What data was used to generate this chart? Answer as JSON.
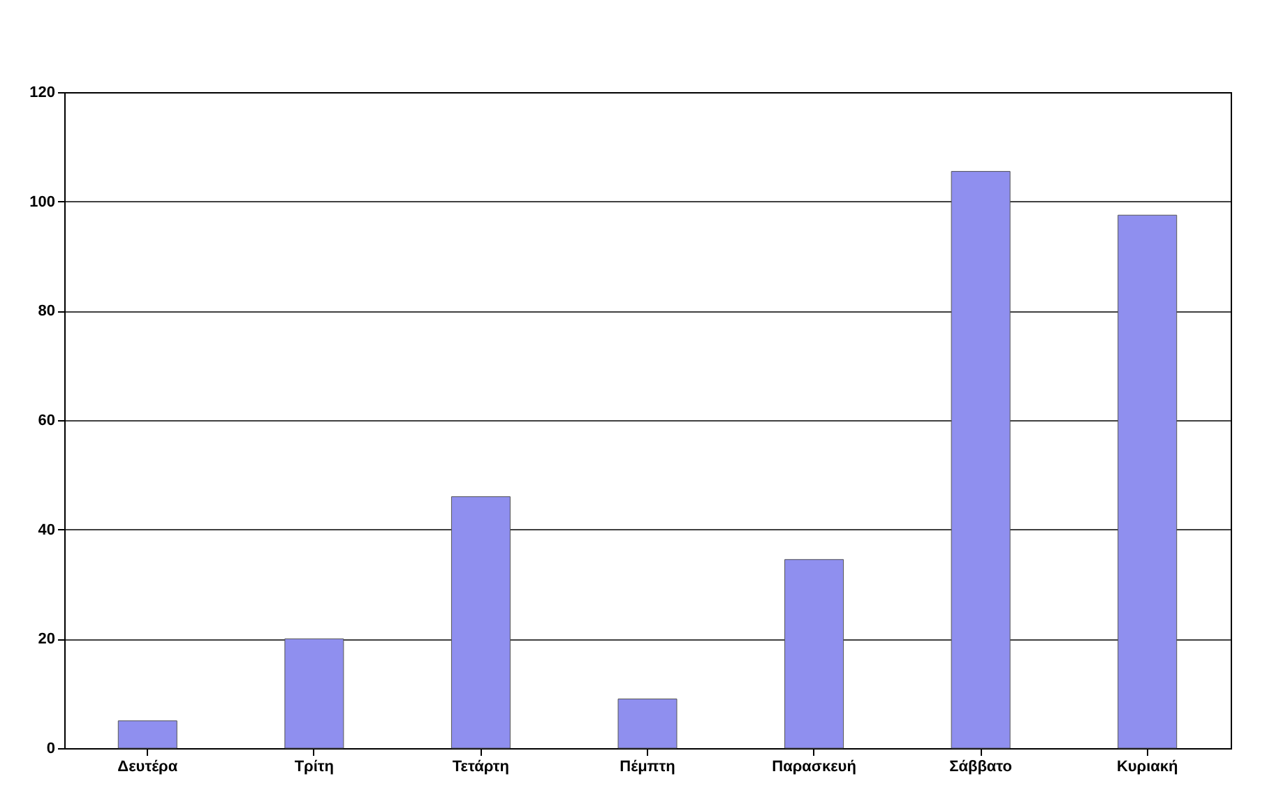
{
  "chart_data": {
    "type": "bar",
    "categories": [
      "Δευτέρα",
      "Τρίτη",
      "Τετάρτη",
      "Πέμπτη",
      "Παρασκευή",
      "Σάββατο",
      "Κυριακή"
    ],
    "values": [
      5,
      20,
      46,
      9,
      34.5,
      105.5,
      97.5
    ],
    "color": "#8f8fef",
    "ylim": [
      0,
      120
    ],
    "yticks": [
      0,
      20,
      40,
      60,
      80,
      100,
      120
    ],
    "grid": "y"
  }
}
